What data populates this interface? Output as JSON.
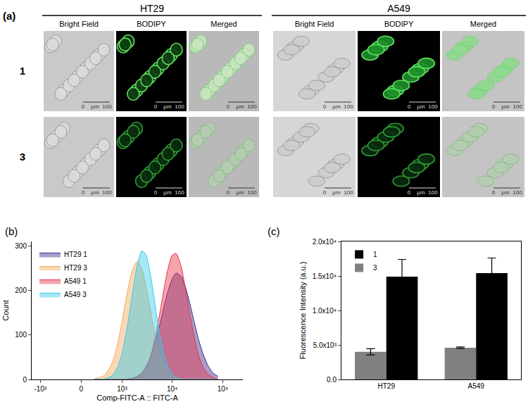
{
  "image_panel": {
    "label": "(a)",
    "groups": [
      {
        "title": "HT29",
        "columns": [
          "Bright Field",
          "BODIPY",
          "Merged"
        ]
      },
      {
        "title": "A549",
        "columns": [
          "Bright Field",
          "BODIPY",
          "Merged"
        ]
      }
    ],
    "rows": [
      "1",
      "3"
    ],
    "scale_bar": [
      "0",
      "µm",
      "100"
    ]
  },
  "chart_data": [
    {
      "type": "area",
      "annotations": [
        "(b)"
      ],
      "xlabel": "Comp-FITC-A :: FITC-A",
      "ylabel": "Count",
      "log": "x",
      "x": [
        200,
        400,
        600,
        800,
        1000,
        1300,
        1600,
        2000,
        2500,
        3000,
        3500,
        4000,
        5000,
        6000,
        7000,
        8000,
        10000,
        12000,
        15000,
        18000,
        22000,
        27000,
        33000,
        40000,
        50000,
        65000,
        80000
      ],
      "series": [
        {
          "name": "HT29 1",
          "color": "#3b2a8c",
          "values": [
            0,
            0,
            0,
            0,
            0,
            1,
            3,
            7,
            16,
            28,
            43,
            60,
            98,
            134,
            167,
            193,
            226,
            239,
            232,
            210,
            174,
            131,
            91,
            60,
            33,
            14,
            7
          ]
        },
        {
          "name": "HT29 3",
          "color": "#f4a95a",
          "values": [
            1,
            9,
            35,
            79,
            131,
            200,
            244,
            265,
            248,
            210,
            170,
            133,
            78,
            45,
            27,
            16,
            6,
            2,
            0,
            0,
            0,
            0,
            0,
            0,
            0,
            0,
            0
          ]
        },
        {
          "name": "A549 1",
          "color": "#e8334a",
          "values": [
            0,
            0,
            0,
            0,
            0,
            1,
            2,
            5,
            12,
            25,
            43,
            64,
            114,
            164,
            208,
            242,
            279,
            283,
            254,
            209,
            152,
            98,
            56,
            30,
            13,
            4,
            1
          ]
        },
        {
          "name": "A549 3",
          "color": "#38c9e6",
          "values": [
            0,
            1,
            8,
            27,
            59,
            124,
            188,
            254,
            289,
            281,
            251,
            213,
            140,
            87,
            53,
            32,
            12,
            5,
            1,
            0,
            0,
            0,
            0,
            0,
            0,
            0,
            0
          ]
        }
      ],
      "xlim": [
        -1500,
        250000
      ],
      "xticks": [
        {
          "value": -1000,
          "label": "-10³"
        },
        0,
        {
          "value": 1000,
          "label": "10³"
        },
        {
          "value": 10000,
          "label": "10⁴"
        },
        {
          "value": 100000,
          "label": "10⁵"
        }
      ],
      "ylim": [
        0,
        310
      ],
      "yticks": [
        0,
        100,
        200,
        300
      ],
      "legend": "upper left",
      "grid": false
    },
    {
      "type": "bar",
      "annotations": [
        "(c)"
      ],
      "ylabel": "Fluorescence Intensity (a.u.)",
      "categories": [
        "HT29",
        "A549"
      ],
      "series": [
        {
          "name": "3",
          "color": "#808080",
          "values": [
            4000,
            4600
          ],
          "errors": [
            450,
            100
          ]
        },
        {
          "name": "1",
          "color": "#000000",
          "values": [
            14900,
            15400
          ],
          "errors": [
            2500,
            2200
          ]
        }
      ],
      "ylim": [
        0,
        20000
      ],
      "yticks": [
        {
          "value": 0,
          "label": "0.0"
        },
        {
          "value": 5000,
          "label": "5.0x10³"
        },
        {
          "value": 10000,
          "label": "1.0x10⁴"
        },
        {
          "value": 15000,
          "label": "1.5x10⁴"
        },
        {
          "value": 20000,
          "label": "2.0x10⁴"
        }
      ],
      "legend": "upper left",
      "grid": false
    }
  ]
}
